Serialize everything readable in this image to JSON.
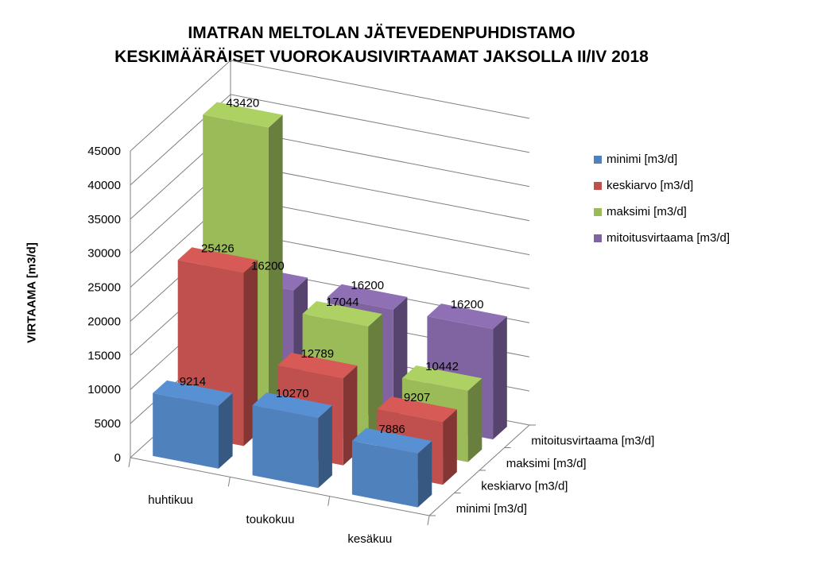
{
  "chart_data": {
    "type": "bar",
    "title": "IMATRAN MELTOLAN JÄTEVEDENPUHDISTAMO",
    "subtitle": "KESKIMÄÄRÄISET VUOROKAUSIVIRTAAMAT JAKSOLLA II/IV 2018",
    "ylabel": "VIRTAAMA [m3/d]",
    "ylim": [
      0,
      45000
    ],
    "yticks": [
      0,
      5000,
      10000,
      15000,
      20000,
      25000,
      30000,
      35000,
      40000,
      45000
    ],
    "categories": [
      "huhtikuu",
      "toukokuu",
      "kesäkuu"
    ],
    "series": [
      {
        "name": "minimi [m3/d]",
        "color": "#4f81bd",
        "values": [
          9214,
          10270,
          7886
        ]
      },
      {
        "name": "keskiarvo [m3/d]",
        "color": "#c0504d",
        "values": [
          25426,
          12789,
          9207
        ]
      },
      {
        "name": "maksimi [m3/d]",
        "color": "#9bbb59",
        "values": [
          43420,
          17044,
          10442
        ]
      },
      {
        "name": "mitoitusvirtaama [m3/d]",
        "color": "#8064a2",
        "values": [
          16200,
          16200,
          16200
        ]
      }
    ],
    "grid": true,
    "legend": "right",
    "projection": "3d"
  }
}
